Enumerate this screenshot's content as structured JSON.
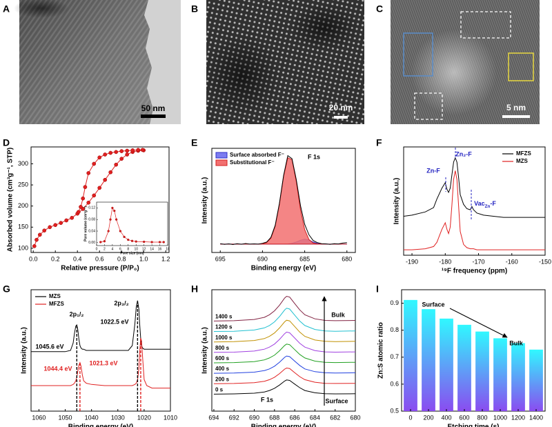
{
  "images": [
    {
      "panel": "A",
      "scale_bar": "50 nm"
    },
    {
      "panel": "B",
      "scale_bar": "20 nm"
    },
    {
      "panel": "C",
      "scale_bar": "5 nm"
    }
  ],
  "chart_data": [
    {
      "type": "line",
      "panel": "D",
      "xlabel": "Relative pressure (P/P₀)",
      "ylabel": "Absorbed volume (cm³g⁻¹, STP)",
      "xlim": [
        -0.02,
        1.23
      ],
      "ylim": [
        90,
        340
      ],
      "xticks": [
        {
          "value": 0,
          "label": "0.0"
        },
        0.2,
        0.4,
        0.6,
        0.8,
        {
          "value": 1,
          "label": "1.0"
        },
        1.2
      ],
      "yticks": [
        100,
        150,
        200,
        250,
        300
      ],
      "series": [
        {
          "color": "#e02020",
          "marker": true,
          "x": [
            0.01,
            0.03,
            0.06,
            0.1,
            0.15,
            0.2,
            0.25,
            0.3,
            0.35,
            0.4,
            0.45,
            0.5,
            0.55,
            0.6,
            0.65,
            0.7,
            0.75,
            0.8,
            0.85,
            0.9,
            0.95,
            1.0
          ],
          "values": [
            105,
            120,
            132,
            142,
            150,
            155,
            160,
            166,
            172,
            182,
            193,
            208,
            225,
            243,
            262,
            280,
            298,
            312,
            322,
            328,
            331,
            332
          ]
        },
        {
          "color": "#e02020",
          "marker": true,
          "x": [
            0.99,
            0.95,
            0.9,
            0.85,
            0.8,
            0.75,
            0.7,
            0.65,
            0.6,
            0.55,
            0.5,
            0.47,
            0.45,
            0.43,
            0.41
          ],
          "values": [
            333,
            333,
            332,
            331,
            330,
            328,
            326,
            322,
            315,
            300,
            278,
            245,
            218,
            198,
            186
          ]
        }
      ],
      "inset": {
        "type": "line",
        "xlabel": "Pore size (nm)",
        "ylabel": "Pore volume (cm³g⁻¹)",
        "xlim": [
          0,
          18
        ],
        "ylim": [
          -0.01,
          0.14
        ],
        "xticks": [
          0,
          2,
          4,
          6,
          8,
          10,
          12,
          14,
          16,
          18
        ],
        "yticks": [
          {
            "value": 0,
            "label": "0.00"
          },
          0.04,
          0.08,
          0.12
        ],
        "series": [
          {
            "color": "#e02020",
            "marker": true,
            "x": [
              1,
              2,
              3,
              3.5,
              4,
              4.5,
              5,
              6,
              7,
              8,
              9,
              10,
              12,
              14,
              16,
              17
            ],
            "values": [
              0.002,
              0.005,
              0.04,
              0.08,
              0.12,
              0.11,
              0.08,
              0.04,
              0.02,
              0.01,
              0.006,
              0.004,
              0.003,
              0.002,
              0.002,
              0.002
            ]
          }
        ]
      }
    },
    {
      "type": "line",
      "panel": "E",
      "xlabel": "Binding energy (eV)",
      "ylabel": "Intensity (a.u.)",
      "xlim": [
        696,
        679
      ],
      "ylim": [
        0,
        1
      ],
      "xticks": [
        695,
        690,
        685,
        680
      ],
      "legend": "upper left",
      "annotations": [
        {
          "text": "F 1s",
          "color": "#000000"
        }
      ],
      "x": [
        695,
        694.5,
        694,
        693.5,
        693,
        692.5,
        692,
        691.5,
        691,
        690.5,
        690,
        689.5,
        689,
        688.5,
        688,
        687.5,
        687,
        686.5,
        686,
        685.5,
        685,
        684.5,
        684,
        683.5,
        683,
        682.5,
        682,
        681.5,
        681,
        680.5,
        680
      ],
      "series": [
        {
          "name": "Surface absorbed F⁻",
          "color": "#3030c8",
          "fill": "#7c7cf0",
          "values": [
            0.08,
            0.08,
            0.08,
            0.08,
            0.08,
            0.08,
            0.08,
            0.08,
            0.08,
            0.08,
            0.08,
            0.08,
            0.08,
            0.08,
            0.08,
            0.08,
            0.082,
            0.088,
            0.1,
            0.118,
            0.128,
            0.12,
            0.1,
            0.088,
            0.082,
            0.08,
            0.08,
            0.08,
            0.08,
            0.08,
            0.08
          ]
        },
        {
          "name": "Substitutional F⁻",
          "color": "#d42020",
          "fill": "#f27070",
          "values": [
            0.08,
            0.08,
            0.08,
            0.08,
            0.08,
            0.08,
            0.08,
            0.08,
            0.08,
            0.081,
            0.083,
            0.095,
            0.138,
            0.25,
            0.46,
            0.73,
            0.91,
            0.89,
            0.68,
            0.41,
            0.22,
            0.125,
            0.091,
            0.083,
            0.08,
            0.08,
            0.08,
            0.08,
            0.08,
            0.08,
            0.08
          ]
        },
        {
          "color": "#000000",
          "values": [
            0.085,
            0.078,
            0.083,
            0.076,
            0.084,
            0.079,
            0.086,
            0.08,
            0.083,
            0.08,
            0.088,
            0.1,
            0.145,
            0.26,
            0.47,
            0.74,
            0.93,
            0.9,
            0.7,
            0.45,
            0.27,
            0.17,
            0.115,
            0.095,
            0.085,
            0.083,
            0.078,
            0.085,
            0.082,
            0.09,
            0.095
          ]
        }
      ]
    },
    {
      "type": "line",
      "panel": "F",
      "xlabel": "¹⁹F frequency (ppm)",
      "ylabel": "Intensity (a.u.)",
      "xlim": [
        -192.5,
        -150
      ],
      "ylim": [
        0,
        1
      ],
      "xticks": [
        -190,
        -180,
        -170,
        -160,
        -150
      ],
      "legend": "upper right",
      "annotations": [
        {
          "text": "Zn-F",
          "color": "#2020c0"
        },
        {
          "text": "Zn₂-F",
          "color": "#2020c0"
        },
        {
          "text": [
            "Vac",
            "Zn",
            "-F"
          ],
          "color": "#2020c0"
        }
      ],
      "x": [
        -192.5,
        -190,
        -186,
        -183.5,
        -182.5,
        -181,
        -180,
        -179.5,
        -179,
        -178.5,
        -178,
        -177.5,
        -177,
        -176.5,
        -176,
        -175.5,
        -174.5,
        -173.5,
        -172.5,
        -172,
        -171.5,
        -170.5,
        -168.5,
        -165.5,
        -162.5,
        -158.5,
        -154,
        -150
      ],
      "series": [
        {
          "name": "MFZS",
          "color": "#000000",
          "values": [
            0.36,
            0.37,
            0.4,
            0.44,
            0.52,
            0.62,
            0.67,
            0.61,
            0.58,
            0.62,
            0.74,
            0.86,
            0.9,
            0.86,
            0.72,
            0.56,
            0.47,
            0.43,
            0.42,
            0.45,
            0.42,
            0.39,
            0.37,
            0.36,
            0.35,
            0.35,
            0.35,
            0.35
          ]
        },
        {
          "name": "MZS",
          "color": "#e02020",
          "values": [
            0.05,
            0.05,
            0.06,
            0.08,
            0.12,
            0.24,
            0.3,
            0.24,
            0.2,
            0.26,
            0.46,
            0.7,
            0.78,
            0.7,
            0.46,
            0.22,
            0.1,
            0.07,
            0.06,
            0.06,
            0.06,
            0.05,
            0.05,
            0.05,
            0.05,
            0.05,
            0.05,
            0.05
          ]
        }
      ]
    },
    {
      "type": "line",
      "panel": "G",
      "xlabel": "Binding energy (eV)",
      "ylabel": "Intensity (a.u.)",
      "xlim": [
        1063,
        1010
      ],
      "ylim": [
        0,
        1
      ],
      "xticks": [
        1060,
        1050,
        1040,
        1030,
        1020,
        1010
      ],
      "legend": "upper left",
      "annotations": [
        {
          "text": "2p₁/₂",
          "color": "#000000"
        },
        {
          "text": "2p₃/₂",
          "color": "#000000"
        }
      ],
      "peaks": [
        {
          "value": 1045.6,
          "label": "1045.6 eV",
          "color": "#000000"
        },
        {
          "value": 1022.5,
          "label": "1022.5 eV",
          "color": "#000000"
        },
        {
          "value": 1044.4,
          "label": "1044.4 eV",
          "color": "#e02020"
        },
        {
          "value": 1021.3,
          "label": "1021.3 eV",
          "color": "#e02020"
        }
      ],
      "x": [
        1063,
        1055,
        1050,
        1048,
        1047,
        1046.5,
        1046,
        1045.6,
        1045.2,
        1044.8,
        1044.4,
        1044,
        1043.5,
        1043,
        1042,
        1040,
        1035,
        1030,
        1026,
        1024.5,
        1023.5,
        1023,
        1022.5,
        1022,
        1021.7,
        1021.3,
        1021,
        1020.6,
        1020,
        1019,
        1017,
        1015,
        1010
      ],
      "series": [
        {
          "name": "MZS",
          "color": "#000000",
          "values": [
            0.49,
            0.49,
            0.49,
            0.5,
            0.56,
            0.64,
            0.7,
            0.71,
            0.67,
            0.59,
            0.54,
            0.52,
            0.51,
            0.51,
            0.5,
            0.5,
            0.5,
            0.5,
            0.5,
            0.54,
            0.72,
            0.86,
            0.91,
            0.84,
            0.72,
            0.6,
            0.54,
            0.52,
            0.51,
            0.51,
            0.51,
            0.51,
            0.51
          ]
        },
        {
          "name": "MFZS",
          "color": "#e02020",
          "values": [
            0.21,
            0.21,
            0.21,
            0.21,
            0.22,
            0.23,
            0.25,
            0.28,
            0.33,
            0.38,
            0.4,
            0.37,
            0.3,
            0.25,
            0.23,
            0.22,
            0.21,
            0.21,
            0.21,
            0.21,
            0.22,
            0.23,
            0.26,
            0.35,
            0.48,
            0.6,
            0.58,
            0.45,
            0.26,
            0.21,
            0.19,
            0.19,
            0.19
          ]
        }
      ]
    },
    {
      "type": "line",
      "panel": "H",
      "xlabel": "Binding energy (eV)",
      "ylabel": "Intensity (a.u.)",
      "xlim": [
        694.2,
        680
      ],
      "ylim": [
        0,
        1
      ],
      "xticks": [
        694,
        692,
        690,
        688,
        686,
        684,
        682,
        680
      ],
      "legend": "inline",
      "annotations": [
        {
          "text": "F 1s",
          "color": "#000000"
        },
        {
          "text": "Bulk",
          "color": "#000000"
        },
        {
          "text": "Surface",
          "color": "#000000"
        }
      ],
      "x": [
        694,
        692,
        690,
        689,
        688.5,
        688,
        687.5,
        687,
        686.8,
        686.5,
        686,
        685.5,
        685,
        684,
        683,
        682,
        680
      ],
      "series": [
        {
          "name": "0 s",
          "color": "#000000",
          "values": [
            0.14,
            0.142,
            0.148,
            0.158,
            0.17,
            0.188,
            0.215,
            0.248,
            0.257,
            0.253,
            0.223,
            0.193,
            0.17,
            0.151,
            0.143,
            0.142,
            0.143
          ]
        },
        {
          "name": "200 s",
          "color": "#e02020",
          "values": [
            0.226,
            0.228,
            0.234,
            0.246,
            0.259,
            0.279,
            0.309,
            0.346,
            0.355,
            0.351,
            0.317,
            0.284,
            0.259,
            0.238,
            0.229,
            0.228,
            0.229
          ]
        },
        {
          "name": "400 s",
          "color": "#2040e0",
          "values": [
            0.312,
            0.314,
            0.321,
            0.334,
            0.348,
            0.37,
            0.403,
            0.443,
            0.454,
            0.449,
            0.412,
            0.376,
            0.348,
            0.325,
            0.316,
            0.314,
            0.316
          ]
        },
        {
          "name": "600 s",
          "color": "#20a020",
          "values": [
            0.398,
            0.4,
            0.408,
            0.422,
            0.438,
            0.461,
            0.497,
            0.541,
            0.552,
            0.547,
            0.507,
            0.467,
            0.438,
            0.412,
            0.402,
            0.4,
            0.402
          ]
        },
        {
          "name": "800 s",
          "color": "#a040e0",
          "values": [
            0.484,
            0.486,
            0.495,
            0.51,
            0.527,
            0.552,
            0.591,
            0.638,
            0.651,
            0.645,
            0.602,
            0.559,
            0.527,
            0.499,
            0.488,
            0.486,
            0.488
          ]
        },
        {
          "name": "1000 s",
          "color": "#c09000",
          "values": [
            0.57,
            0.572,
            0.582,
            0.598,
            0.616,
            0.644,
            0.685,
            0.736,
            0.749,
            0.743,
            0.697,
            0.651,
            0.616,
            0.586,
            0.575,
            0.572,
            0.575
          ]
        },
        {
          "name": "1200 s",
          "color": "#20c0d0",
          "values": [
            0.656,
            0.658,
            0.668,
            0.686,
            0.705,
            0.735,
            0.779,
            0.833,
            0.848,
            0.841,
            0.791,
            0.742,
            0.705,
            0.673,
            0.661,
            0.658,
            0.661
          ]
        },
        {
          "name": "1400 s",
          "color": "#802040",
          "values": [
            0.742,
            0.745,
            0.755,
            0.773,
            0.794,
            0.826,
            0.873,
            0.931,
            0.946,
            0.939,
            0.886,
            0.834,
            0.794,
            0.76,
            0.747,
            0.745,
            0.747
          ]
        }
      ]
    },
    {
      "type": "bar",
      "panel": "I",
      "xlabel": "Etching time (s)",
      "ylabel": "Zn:S atomic ratio",
      "ylim": [
        0.5,
        0.95
      ],
      "yticks": [
        0.5,
        0.6,
        0.7,
        0.8,
        0.9
      ],
      "gradient": [
        "#30f8ff",
        "#8a4cf0"
      ],
      "annotations": [
        {
          "text": "Surface",
          "color": "#000000"
        },
        {
          "text": "Bulk",
          "color": "#000000"
        }
      ],
      "categories": [
        0,
        200,
        400,
        600,
        800,
        1000,
        1200,
        1400
      ],
      "values": [
        0.912,
        0.878,
        0.843,
        0.82,
        0.795,
        0.77,
        0.752,
        0.728
      ]
    }
  ]
}
